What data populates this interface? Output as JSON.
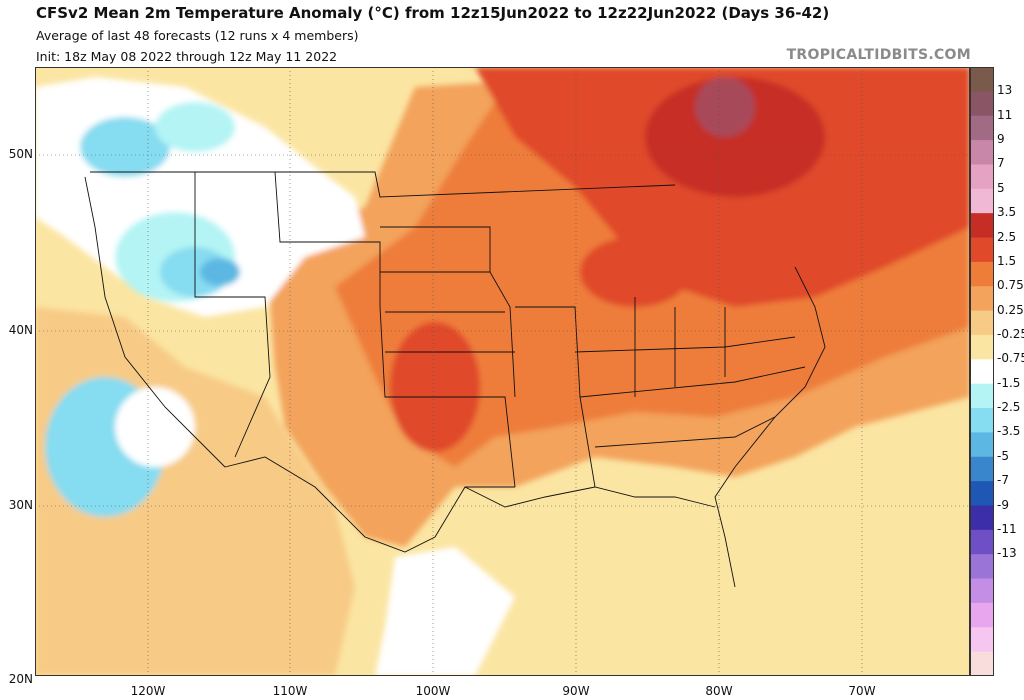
{
  "header": {
    "title": "CFSv2 Mean 2m Temperature Anomaly (°C) from 12z15Jun2022 to 12z22Jun2022 (Days 36-42)",
    "subtitle_1": "Average of last 48 forecasts (12 runs x 4 members)",
    "subtitle_2": "Init: 18z May 08 2022 through 12z May 11 2022",
    "credit": "TROPICALTIDBITS.COM"
  },
  "axes": {
    "lat_labels": [
      "50N",
      "40N",
      "30N",
      "20N"
    ],
    "lon_labels": [
      "120W",
      "110W",
      "100W",
      "90W",
      "80W",
      "70W"
    ]
  },
  "colorbar": {
    "labels": [
      "13",
      "11",
      "9",
      "7",
      "5",
      "3.5",
      "2.5",
      "1.5",
      "0.75",
      "0.25",
      "-0.25",
      "-0.75",
      "-1.5",
      "-2.5",
      "-3.5",
      "-5",
      "-7",
      "-9",
      "-11",
      "-13"
    ],
    "colors": [
      "#7a5a4a",
      "#8a5565",
      "#a16b85",
      "#c886a8",
      "#e5a2c2",
      "#f0b8d4",
      "#c62e25",
      "#e04a2a",
      "#ee7d3a",
      "#f3a35b",
      "#f7cb86",
      "#fbe5a2",
      "#ffffff",
      "#b4f4f4",
      "#86dcf0",
      "#5cb8e2",
      "#3a86cc",
      "#1f58b4",
      "#3c2ea8",
      "#6f4fc6",
      "#9a74d6",
      "#c58ee6",
      "#e7a6ee",
      "#f5c6f0",
      "#f9dcdc"
    ]
  },
  "legend_map": {
    "extreme_warm": "#8a5565",
    "very_warm": "#c62e25",
    "warm": "#e04a2a",
    "moderate_warm": "#ee7d3a",
    "mild_warm": "#f3a35b",
    "slight_warm": "#f7cb86",
    "near_zero_warm": "#fbe5a2",
    "neutral": "#ffffff",
    "slight_cool": "#b4f4f4",
    "cool": "#86dcf0",
    "cooler": "#5cb8e2"
  }
}
